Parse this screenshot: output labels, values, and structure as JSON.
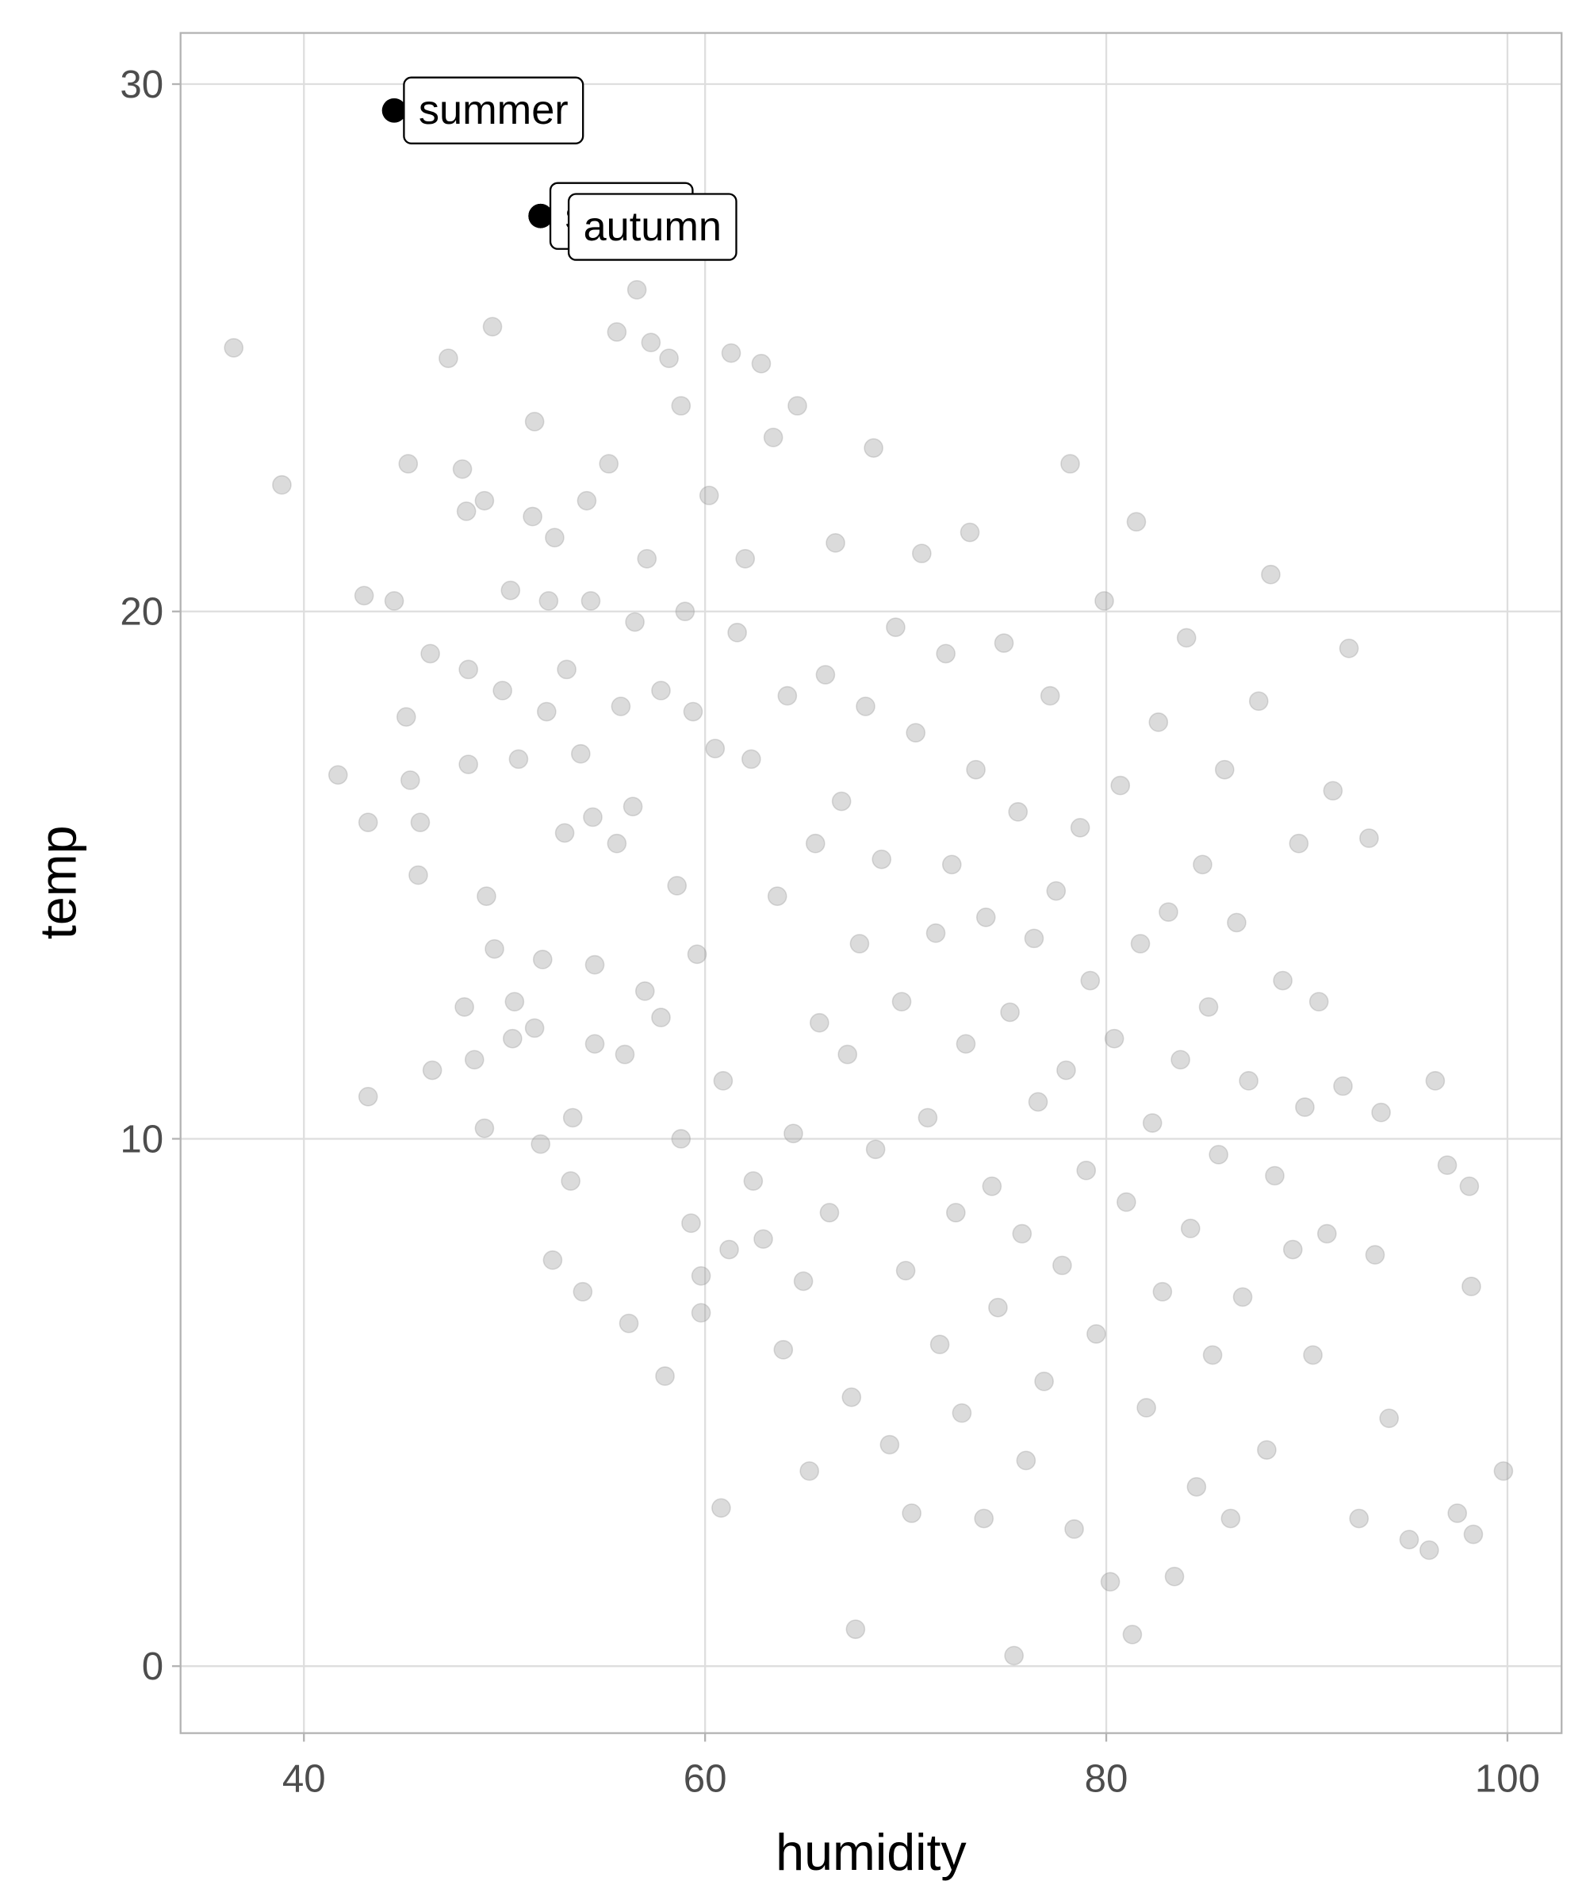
{
  "chart_data": {
    "type": "scatter",
    "x_label": "humidity",
    "y_label": "temp",
    "xlim": [
      33.85,
      102.7
    ],
    "ylim": [
      -1.27,
      30.97
    ],
    "xticks": [
      40,
      60,
      80,
      100
    ],
    "yticks": [
      0,
      10,
      20,
      30
    ],
    "grid": true,
    "color": "#999999",
    "highlight_color": "#000000",
    "x": [
      36.5,
      38.9,
      41.7,
      43,
      43.2,
      43.2,
      44.5,
      45.2,
      45.1,
      45.3,
      45.7,
      45.8,
      46.3,
      46.4,
      47.2,
      47.9,
      48.0,
      48.1,
      48.2,
      48.2,
      48.5,
      49,
      49.1,
      49,
      49.4,
      49.5,
      49.9,
      50.3,
      50.5,
      50.4,
      50.7,
      51.4,
      51.5,
      51.5,
      51.9,
      51.8,
      52.2,
      52.1,
      52.4,
      52.5,
      53.1,
      53,
      53.3,
      53.4,
      53.8,
      53.9,
      54.1,
      54.3,
      54.5,
      54.5,
      54.4,
      55.2,
      55.6,
      55.6,
      55.8,
      56,
      56.2,
      56.4,
      56.5,
      56.6,
      57.1,
      57,
      57.3,
      57.8,
      57.8,
      58.0,
      58.2,
      58.6,
      58.8,
      58.8,
      59,
      59.3,
      59.4,
      59.6,
      59.8,
      59.8,
      60.2,
      60.5,
      60.8,
      60.9,
      61.2,
      61.3,
      61.6,
      62,
      62.3,
      62.4,
      62.8,
      62.9,
      63.4,
      63.6,
      63.9,
      64.1,
      64.4,
      64.6,
      64.9,
      65.2,
      65.5,
      65.7,
      66.0,
      66.2,
      66.5,
      66.8,
      67.1,
      67.3,
      67.5,
      67.7,
      68,
      68.4,
      68.5,
      68.8,
      69.2,
      69.5,
      69.8,
      70.0,
      70.3,
      70.5,
      70.8,
      71.1,
      71.5,
      71.7,
      72.0,
      72.3,
      72.5,
      72.8,
      73.0,
      73.2,
      73.5,
      73.9,
      74.0,
      74.3,
      74.6,
      74.9,
      75.2,
      75.4,
      75.6,
      75.8,
      76.0,
      76.4,
      76.6,
      76.9,
      77.2,
      77.5,
      77.8,
      78.0,
      78.2,
      78.4,
      78.7,
      79.0,
      79.2,
      79.5,
      79.9,
      80.2,
      80.4,
      80.7,
      81.0,
      81.3,
      81.5,
      81.7,
      82.0,
      82.3,
      82.6,
      82.8,
      83.1,
      83.4,
      83.7,
      84.0,
      84.2,
      84.5,
      84.8,
      85.1,
      85.3,
      85.6,
      85.9,
      86.2,
      86.5,
      86.8,
      87.1,
      87.6,
      88.0,
      88.2,
      88.4,
      88.8,
      89.3,
      89.6,
      89.9,
      90.3,
      90.6,
      91.0,
      91.3,
      91.8,
      92.1,
      92.6,
      93.1,
      93.4,
      93.7,
      94.1,
      95.1,
      96.1,
      96.4,
      97.0,
      97.5,
      98.1,
      98.2,
      98.3,
      99.8
    ],
    "values": [
      25,
      22.4,
      16.9,
      20.3,
      16,
      10.8,
      20.2,
      22.8,
      18,
      16.8,
      15,
      16,
      19.2,
      11.3,
      24.8,
      22.7,
      12.5,
      21.9,
      17.1,
      18.9,
      11.5,
      22.1,
      14.6,
      10.2,
      25.4,
      13.6,
      18.5,
      20.4,
      12.6,
      11.9,
      17.2,
      21.8,
      23.6,
      12.1,
      13.4,
      9.9,
      20.2,
      18.1,
      7.7,
      21.4,
      18.9,
      15.8,
      9.2,
      10.4,
      17.3,
      7.1,
      22.1,
      20.2,
      11.8,
      13.3,
      16.1,
      22.8,
      25.3,
      15.6,
      18.2,
      11.6,
      6.5,
      16.3,
      19.8,
      26.1,
      21,
      12.8,
      25.1,
      18.5,
      12.3,
      5.5,
      24.8,
      14.8,
      10,
      23.9,
      20,
      8.4,
      18.1,
      13.5,
      7.4,
      6.7,
      22.2,
      17.4,
      3,
      11.1,
      7.9,
      24.9,
      19.6,
      21,
      17.2,
      9.2,
      24.7,
      8.1,
      23.3,
      14.6,
      6,
      18.4,
      10.1,
      23.9,
      7.3,
      3.7,
      15.6,
      12.2,
      18.8,
      8.6,
      21.3,
      16.4,
      11.6,
      5.1,
      0.7,
      13.7,
      18.2,
      23.1,
      9.8,
      15.3,
      4.2,
      19.7,
      12.6,
      7.5,
      2.9,
      17.7,
      21.1,
      10.4,
      13.9,
      6.1,
      19.2,
      15.2,
      8.6,
      4.8,
      11.8,
      21.5,
      17.0,
      2.8,
      14.2,
      9.1,
      6.8,
      19.4,
      12.4,
      0.2,
      16.2,
      8.2,
      3.9,
      13.8,
      10.7,
      5.4,
      18.4,
      14.7,
      7.6,
      11.3,
      22.8,
      2.6,
      15.9,
      9.4,
      13.0,
      6.3,
      20.2,
      1.6,
      11.9,
      16.7,
      8.8,
      0.6,
      21.7,
      13.7,
      4.9,
      10.3,
      17.9,
      7.1,
      14.3,
      1.7,
      11.5,
      19.5,
      8.3,
      3.4,
      15.2,
      12.5,
      5.9,
      9.7,
      17.0,
      2.8,
      14.1,
      7.0,
      11.1,
      18.3,
      4.1,
      20.7,
      9.3,
      13.0,
      7.9,
      15.6,
      10.6,
      5.9,
      12.6,
      8.2,
      16.6,
      11.0,
      19.3,
      2.8,
      15.7,
      7.8,
      10.5,
      4.7,
      2.4,
      2.2,
      11.1,
      9.5,
      2.9,
      9.1,
      7.2,
      2.5,
      3.7
    ],
    "annotations": [
      {
        "text": "summer",
        "x": 44.5,
        "y": 29.5
      },
      {
        "text": "spring",
        "x": 51.8,
        "y": 27.5
      },
      {
        "text": "autumn",
        "x": 51.8,
        "y": 27.5
      }
    ]
  }
}
